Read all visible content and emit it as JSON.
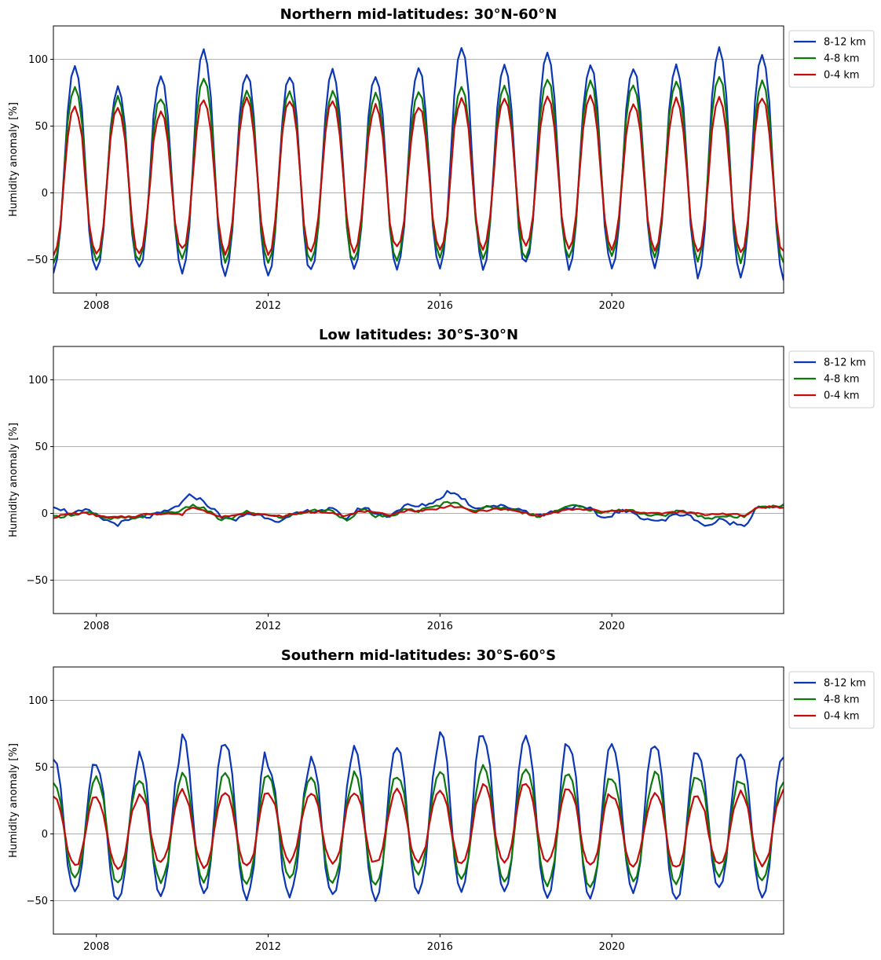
{
  "chart_data": [
    {
      "type": "line",
      "title": "Northern mid-latitudes: 30°N-60°N",
      "xlabel": "",
      "ylabel": "Humidity anomaly  [%]",
      "xlim": [
        2007.0,
        2024.0
      ],
      "ylim": [
        -75,
        125
      ],
      "xticks": [
        2008,
        2012,
        2016,
        2020
      ],
      "xtick_labels": [
        "2008",
        "2012",
        "2016",
        "2020"
      ],
      "yticks": [
        -50,
        0,
        50,
        100
      ],
      "ytick_labels": [
        "−50",
        "0",
        "50",
        "100"
      ],
      "grid": "horizontal",
      "legend_position": "outside-upper-right",
      "pattern": "seasonal",
      "series": [
        {
          "name": "8-12 km",
          "color": "#0b36b5",
          "offset": 22.5,
          "amp": 82.5,
          "peak_month": 7.0,
          "peaks": [
            94,
            78,
            88,
            107,
            90,
            88,
            91,
            88,
            94,
            108,
            95,
            105,
            96,
            94,
            95,
            108,
            103
          ],
          "troughs": [
            -59,
            -58,
            -57,
            -61,
            -62,
            -62,
            -57,
            -58,
            -57,
            -55,
            -57,
            -53,
            -56,
            -56,
            -55,
            -63,
            -64
          ]
        },
        {
          "name": "4-8 km",
          "color": "#0a7a0a",
          "offset": 14,
          "amp": 65,
          "peak_month": 7.0,
          "peaks": [
            79,
            71,
            72,
            87,
            77,
            76,
            76,
            74,
            76,
            80,
            80,
            86,
            84,
            81,
            83,
            88,
            83
          ],
          "troughs": [
            -51,
            -52,
            -50,
            -50,
            -53,
            -54,
            -52,
            -52,
            -49,
            -48,
            -50,
            -47,
            -49,
            -47,
            -47,
            -51,
            -51
          ]
        },
        {
          "name": "0-4 km",
          "color": "#c40c0c",
          "offset": 12,
          "amp": 56,
          "peak_month": 7.0,
          "peaks": [
            64,
            65,
            60,
            71,
            70,
            69,
            69,
            65,
            65,
            71,
            70,
            71,
            71,
            67,
            70,
            71,
            71
          ],
          "troughs": [
            -46,
            -46,
            -44,
            -43,
            -46,
            -46,
            -44,
            -44,
            -42,
            -42,
            -42,
            -41,
            -43,
            -42,
            -42,
            -45,
            -45
          ]
        }
      ]
    },
    {
      "type": "line",
      "title": "Low latitudes: 30°S-30°N",
      "xlabel": "",
      "ylabel": "Humidity anomaly  [%]",
      "xlim": [
        2007.0,
        2024.0
      ],
      "ylim": [
        -75,
        125
      ],
      "xticks": [
        2008,
        2012,
        2016,
        2020
      ],
      "xtick_labels": [
        "2008",
        "2012",
        "2016",
        "2020"
      ],
      "yticks": [
        -50,
        0,
        50,
        100
      ],
      "ytick_labels": [
        "−50",
        "0",
        "50",
        "100"
      ],
      "grid": "horizontal",
      "legend_position": "outside-upper-right",
      "pattern": "anomaly",
      "series": [
        {
          "name": "8-12 km",
          "color": "#0b36b5",
          "noise": 1.6,
          "x": [
            2007.0,
            2007.4,
            2007.8,
            2008.2,
            2008.5,
            2008.9,
            2009.3,
            2009.7,
            2010.0,
            2010.2,
            2010.5,
            2010.9,
            2011.2,
            2011.5,
            2011.9,
            2012.3,
            2012.7,
            2013.0,
            2013.5,
            2013.8,
            2014.2,
            2014.5,
            2014.8,
            2015.2,
            2015.5,
            2015.9,
            2016.2,
            2016.5,
            2016.8,
            2017.2,
            2017.5,
            2017.9,
            2018.3,
            2018.7,
            2019.1,
            2019.5,
            2019.8,
            2020.2,
            2020.5,
            2020.8,
            2021.2,
            2021.5,
            2021.9,
            2022.2,
            2022.5,
            2022.9,
            2023.1,
            2023.4,
            2023.7,
            2024.0
          ],
          "y": [
            6,
            0,
            2,
            -5,
            -8,
            -4,
            -2,
            2,
            8,
            14,
            9,
            -2,
            -6,
            0,
            -2,
            -6,
            0,
            2,
            3,
            -4,
            5,
            0,
            -2,
            6,
            5,
            9,
            17,
            12,
            4,
            6,
            5,
            3,
            -2,
            2,
            5,
            3,
            -4,
            2,
            0,
            -4,
            -6,
            0,
            -3,
            -10,
            -5,
            -8,
            -9,
            6,
            4,
            5
          ]
        },
        {
          "name": "4-8 km",
          "color": "#0a7a0a",
          "noise": 1.2,
          "x": [
            2007.0,
            2007.4,
            2007.8,
            2008.2,
            2008.5,
            2008.9,
            2009.3,
            2009.7,
            2010.0,
            2010.2,
            2010.5,
            2010.9,
            2011.2,
            2011.5,
            2011.9,
            2012.3,
            2012.7,
            2013.0,
            2013.5,
            2013.8,
            2014.2,
            2014.5,
            2014.8,
            2015.2,
            2015.5,
            2015.9,
            2016.2,
            2016.5,
            2016.8,
            2017.2,
            2017.5,
            2017.9,
            2018.3,
            2018.7,
            2019.1,
            2019.5,
            2019.8,
            2020.2,
            2020.5,
            2020.8,
            2021.2,
            2021.5,
            2021.9,
            2022.2,
            2022.5,
            2022.9,
            2023.1,
            2023.4,
            2023.7,
            2024.0
          ],
          "y": [
            -3,
            -1,
            1,
            -4,
            -4,
            -3,
            -1,
            1,
            2,
            6,
            4,
            -5,
            -3,
            1,
            -1,
            -3,
            0,
            2,
            2,
            -5,
            3,
            -2,
            -3,
            3,
            2,
            5,
            9,
            6,
            2,
            5,
            4,
            1,
            -2,
            2,
            6,
            3,
            0,
            3,
            2,
            -1,
            -2,
            2,
            0,
            -4,
            -2,
            -3,
            -2,
            6,
            5,
            6
          ]
        },
        {
          "name": "0-4 km",
          "color": "#c40c0c",
          "noise": 0.8,
          "x": [
            2007.0,
            2007.4,
            2007.8,
            2008.2,
            2008.5,
            2008.9,
            2009.3,
            2009.7,
            2010.0,
            2010.2,
            2010.5,
            2010.9,
            2011.2,
            2011.5,
            2011.9,
            2012.3,
            2012.7,
            2013.0,
            2013.5,
            2013.8,
            2014.2,
            2014.5,
            2014.8,
            2015.2,
            2015.5,
            2015.9,
            2016.2,
            2016.5,
            2016.8,
            2017.2,
            2017.5,
            2017.9,
            2018.3,
            2018.7,
            2019.1,
            2019.5,
            2019.8,
            2020.2,
            2020.5,
            2020.8,
            2021.2,
            2021.5,
            2021.9,
            2022.2,
            2022.5,
            2022.9,
            2023.1,
            2023.4,
            2023.7,
            2024.0
          ],
          "y": [
            -3,
            0,
            0,
            -3,
            -3,
            -2,
            0,
            0,
            -1,
            5,
            2,
            -2,
            -2,
            0,
            -1,
            -2,
            0,
            1,
            1,
            -2,
            2,
            0,
            -1,
            2,
            2,
            3,
            6,
            4,
            1,
            3,
            3,
            1,
            -2,
            1,
            3,
            3,
            1,
            2,
            2,
            0,
            0,
            1,
            0,
            -1,
            0,
            -1,
            -2,
            5,
            5,
            4
          ]
        }
      ]
    },
    {
      "type": "line",
      "title": "Southern mid-latitudes: 30°S-60°S",
      "xlabel": "",
      "ylabel": "Humidity anomaly  [%]",
      "xlim": [
        2007.0,
        2024.0
      ],
      "ylim": [
        -75,
        125
      ],
      "xticks": [
        2008,
        2012,
        2016,
        2020
      ],
      "xtick_labels": [
        "2008",
        "2012",
        "2016",
        "2020"
      ],
      "yticks": [
        -50,
        0,
        50,
        100
      ],
      "ytick_labels": [
        "−50",
        "0",
        "50",
        "100"
      ],
      "grid": "horizontal",
      "legend_position": "outside-upper-right",
      "pattern": "seasonal",
      "series": [
        {
          "name": "8-12 km",
          "color": "#0b36b5",
          "offset": 7,
          "amp": 50,
          "peak_month": 1.0,
          "peaks": [
            57,
            51,
            60,
            74,
            67,
            50,
            58,
            65,
            65,
            78,
            74,
            72,
            67,
            68,
            67,
            61,
            59
          ],
          "troughs": [
            -44,
            -51,
            -46,
            -45,
            -48,
            -46,
            -47,
            -49,
            -44,
            -44,
            -44,
            -48,
            -48,
            -43,
            -50,
            -41,
            -48
          ]
        },
        {
          "name": "4-8 km",
          "color": "#0a7a0a",
          "offset": 2,
          "amp": 38,
          "peak_month": 1.0,
          "peaks": [
            40,
            42,
            40,
            45,
            45,
            42,
            41,
            45,
            44,
            47,
            51,
            50,
            44,
            41,
            48,
            42,
            40
          ],
          "troughs": [
            -33,
            -38,
            -35,
            -35,
            -37,
            -33,
            -37,
            -39,
            -30,
            -33,
            -36,
            -38,
            -40,
            -35,
            -38,
            -31,
            -36
          ]
        },
        {
          "name": "0-4 km",
          "color": "#c40c0c",
          "offset": 3,
          "amp": 26,
          "peak_month": 1.0,
          "peaks": [
            29,
            27,
            31,
            32,
            31,
            31,
            30,
            31,
            32,
            33,
            38,
            36,
            32,
            28,
            32,
            27,
            32
          ],
          "troughs": [
            -24,
            -25,
            -22,
            -24,
            -25,
            -21,
            -22,
            -22,
            -20,
            -22,
            -22,
            -22,
            -25,
            -24,
            -26,
            -23,
            -24
          ]
        }
      ]
    }
  ]
}
